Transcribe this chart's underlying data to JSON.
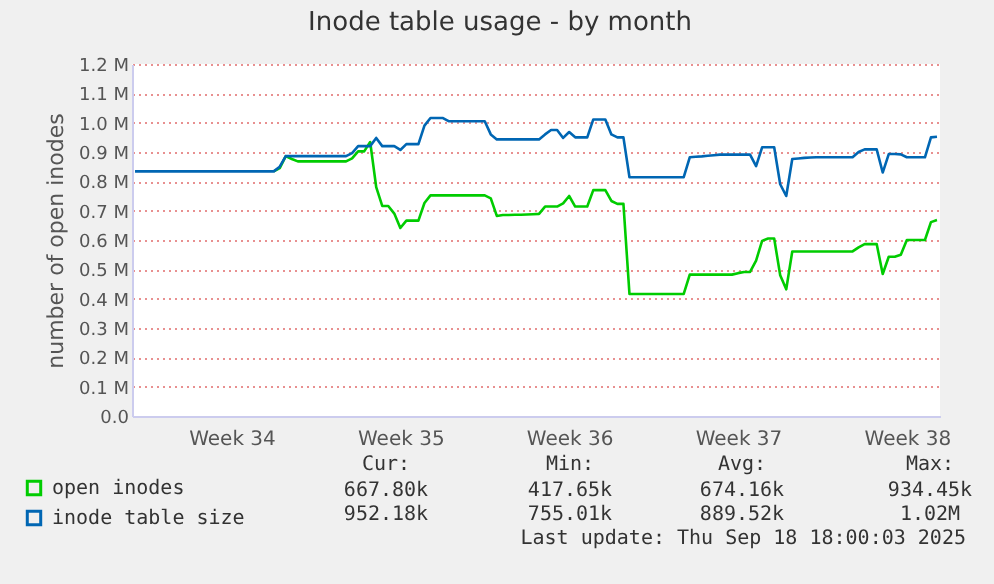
{
  "chart_data": {
    "type": "line",
    "title": "Inode table usage - by month",
    "ylabel": "number of open inodes",
    "categories": [
      null,
      null,
      null,
      null,
      null,
      null,
      null,
      null,
      null,
      null,
      null,
      null,
      null,
      null,
      null,
      null,
      "Week 34",
      null,
      null,
      null,
      null,
      null,
      null,
      null,
      null,
      null,
      null,
      null,
      null,
      null,
      null,
      null,
      null,
      null,
      null,
      null,
      null,
      null,
      null,
      null,
      null,
      null,
      null,
      null,
      "Week 35",
      null,
      null,
      null,
      null,
      null,
      null,
      null,
      null,
      null,
      null,
      null,
      null,
      null,
      null,
      null,
      null,
      null,
      null,
      null,
      null,
      null,
      null,
      null,
      null,
      null,
      null,
      null,
      "Week 36",
      null,
      null,
      null,
      null,
      null,
      null,
      null,
      null,
      null,
      null,
      null,
      null,
      null,
      null,
      null,
      null,
      null,
      null,
      null,
      null,
      null,
      null,
      null,
      null,
      null,
      null,
      null,
      "Week 37",
      null,
      null,
      null,
      null,
      null,
      null,
      null,
      null,
      null,
      null,
      null,
      null,
      null,
      null,
      null,
      null,
      null,
      null,
      null,
      null,
      null,
      null,
      null,
      null,
      null,
      null,
      null,
      "Week 38",
      null,
      null,
      null,
      null,
      null
    ],
    "ylim": [
      0,
      1.2
    ],
    "yticks": [
      {
        "value": 0,
        "label": "0.0"
      },
      {
        "value": 0.1,
        "label": "0.1 M"
      },
      {
        "value": 0.2,
        "label": "0.2 M"
      },
      {
        "value": 0.3,
        "label": "0.3 M"
      },
      {
        "value": 0.4,
        "label": "0.4 M"
      },
      {
        "value": 0.5,
        "label": "0.5 M"
      },
      {
        "value": 0.6,
        "label": "0.6 M"
      },
      {
        "value": 0.7,
        "label": "0.7 M"
      },
      {
        "value": 0.8,
        "label": "0.8 M"
      },
      {
        "value": 0.9,
        "label": "0.9 M"
      },
      {
        "value": 1.0,
        "label": "1.0 M"
      },
      {
        "value": 1.1,
        "label": "1.1 M"
      },
      {
        "value": 1.2,
        "label": "1.2 M"
      }
    ],
    "grid": "y",
    "legend": "bottom left",
    "marker": "none",
    "line_style": "solid",
    "series": [
      {
        "name": "open inodes",
        "color": "#00cc00",
        "values": [
          null,
          null,
          null,
          null,
          null,
          null,
          null,
          null,
          null,
          null,
          null,
          null,
          null,
          null,
          null,
          null,
          null,
          null,
          null,
          null,
          null,
          null,
          null,
          0.834,
          0.845,
          0.886,
          0.876,
          0.868,
          0.868,
          0.868,
          0.868,
          0.868,
          0.868,
          0.868,
          0.868,
          0.868,
          0.878,
          0.902,
          0.902,
          0.934,
          0.78,
          0.716,
          0.716,
          0.69,
          0.641,
          0.666,
          0.666,
          0.666,
          0.726,
          0.752,
          0.752,
          0.752,
          0.752,
          0.752,
          0.752,
          0.752,
          0.752,
          0.752,
          0.752,
          0.742,
          0.682,
          0.685,
          0.685,
          0.686,
          0.686,
          0.687,
          0.688,
          0.689,
          0.714,
          0.714,
          0.714,
          0.725,
          0.75,
          0.714,
          0.714,
          0.714,
          0.77,
          0.77,
          0.77,
          0.733,
          0.723,
          0.723,
          0.416,
          0.416,
          0.416,
          0.416,
          0.416,
          0.416,
          0.416,
          0.416,
          0.416,
          0.416,
          0.482,
          0.482,
          0.482,
          0.482,
          0.482,
          0.482,
          0.482,
          0.482,
          0.487,
          0.491,
          0.491,
          0.53,
          0.597,
          0.605,
          0.605,
          0.48,
          0.432,
          0.561,
          0.561,
          0.561,
          0.561,
          0.561,
          0.561,
          0.561,
          0.561,
          0.561,
          0.561,
          0.561,
          0.575,
          0.586,
          0.586,
          0.586,
          0.484,
          0.543,
          0.543,
          0.55,
          0.6,
          0.6,
          0.6,
          0.6,
          0.661,
          0.668
        ]
      },
      {
        "name": "inode table size",
        "color": "#0066b3",
        "values": [
          0.834,
          0.834,
          0.834,
          0.834,
          0.834,
          0.834,
          0.834,
          0.834,
          0.834,
          0.834,
          0.834,
          0.834,
          0.834,
          0.834,
          0.834,
          0.834,
          0.834,
          0.834,
          0.834,
          0.834,
          0.834,
          0.834,
          0.834,
          0.834,
          0.85,
          0.886,
          0.886,
          0.886,
          0.886,
          0.886,
          0.886,
          0.886,
          0.886,
          0.886,
          0.886,
          0.886,
          0.896,
          0.92,
          0.92,
          0.92,
          0.948,
          0.92,
          0.92,
          0.92,
          0.907,
          0.927,
          0.927,
          0.927,
          0.99,
          1.016,
          1.016,
          1.016,
          1.005,
          1.005,
          1.005,
          1.005,
          1.005,
          1.005,
          1.005,
          0.96,
          0.943,
          0.943,
          0.943,
          0.943,
          0.943,
          0.943,
          0.943,
          0.943,
          0.96,
          0.975,
          0.975,
          0.948,
          0.968,
          0.95,
          0.95,
          0.95,
          1.011,
          1.011,
          1.011,
          0.96,
          0.95,
          0.95,
          0.814,
          0.814,
          0.814,
          0.814,
          0.814,
          0.814,
          0.814,
          0.814,
          0.814,
          0.814,
          0.882,
          0.884,
          0.885,
          0.887,
          0.889,
          0.891,
          0.891,
          0.891,
          0.891,
          0.891,
          0.891,
          0.852,
          0.916,
          0.916,
          0.916,
          0.79,
          0.75,
          0.876,
          0.878,
          0.88,
          0.881,
          0.882,
          0.882,
          0.882,
          0.882,
          0.882,
          0.882,
          0.882,
          0.9,
          0.909,
          0.909,
          0.909,
          0.83,
          0.893,
          0.893,
          0.892,
          0.882,
          0.882,
          0.882,
          0.882,
          0.95,
          0.952
        ]
      }
    ],
    "annotations": [
      "Cur:",
      "Min:",
      "Avg:",
      "Max:",
      "667.80k",
      "417.65k",
      "674.16k",
      "934.45k",
      "952.18k",
      "755.01k",
      "889.52k",
      "1.02M",
      "Last update: Thu Sep 18 18:00:03 2025"
    ]
  }
}
